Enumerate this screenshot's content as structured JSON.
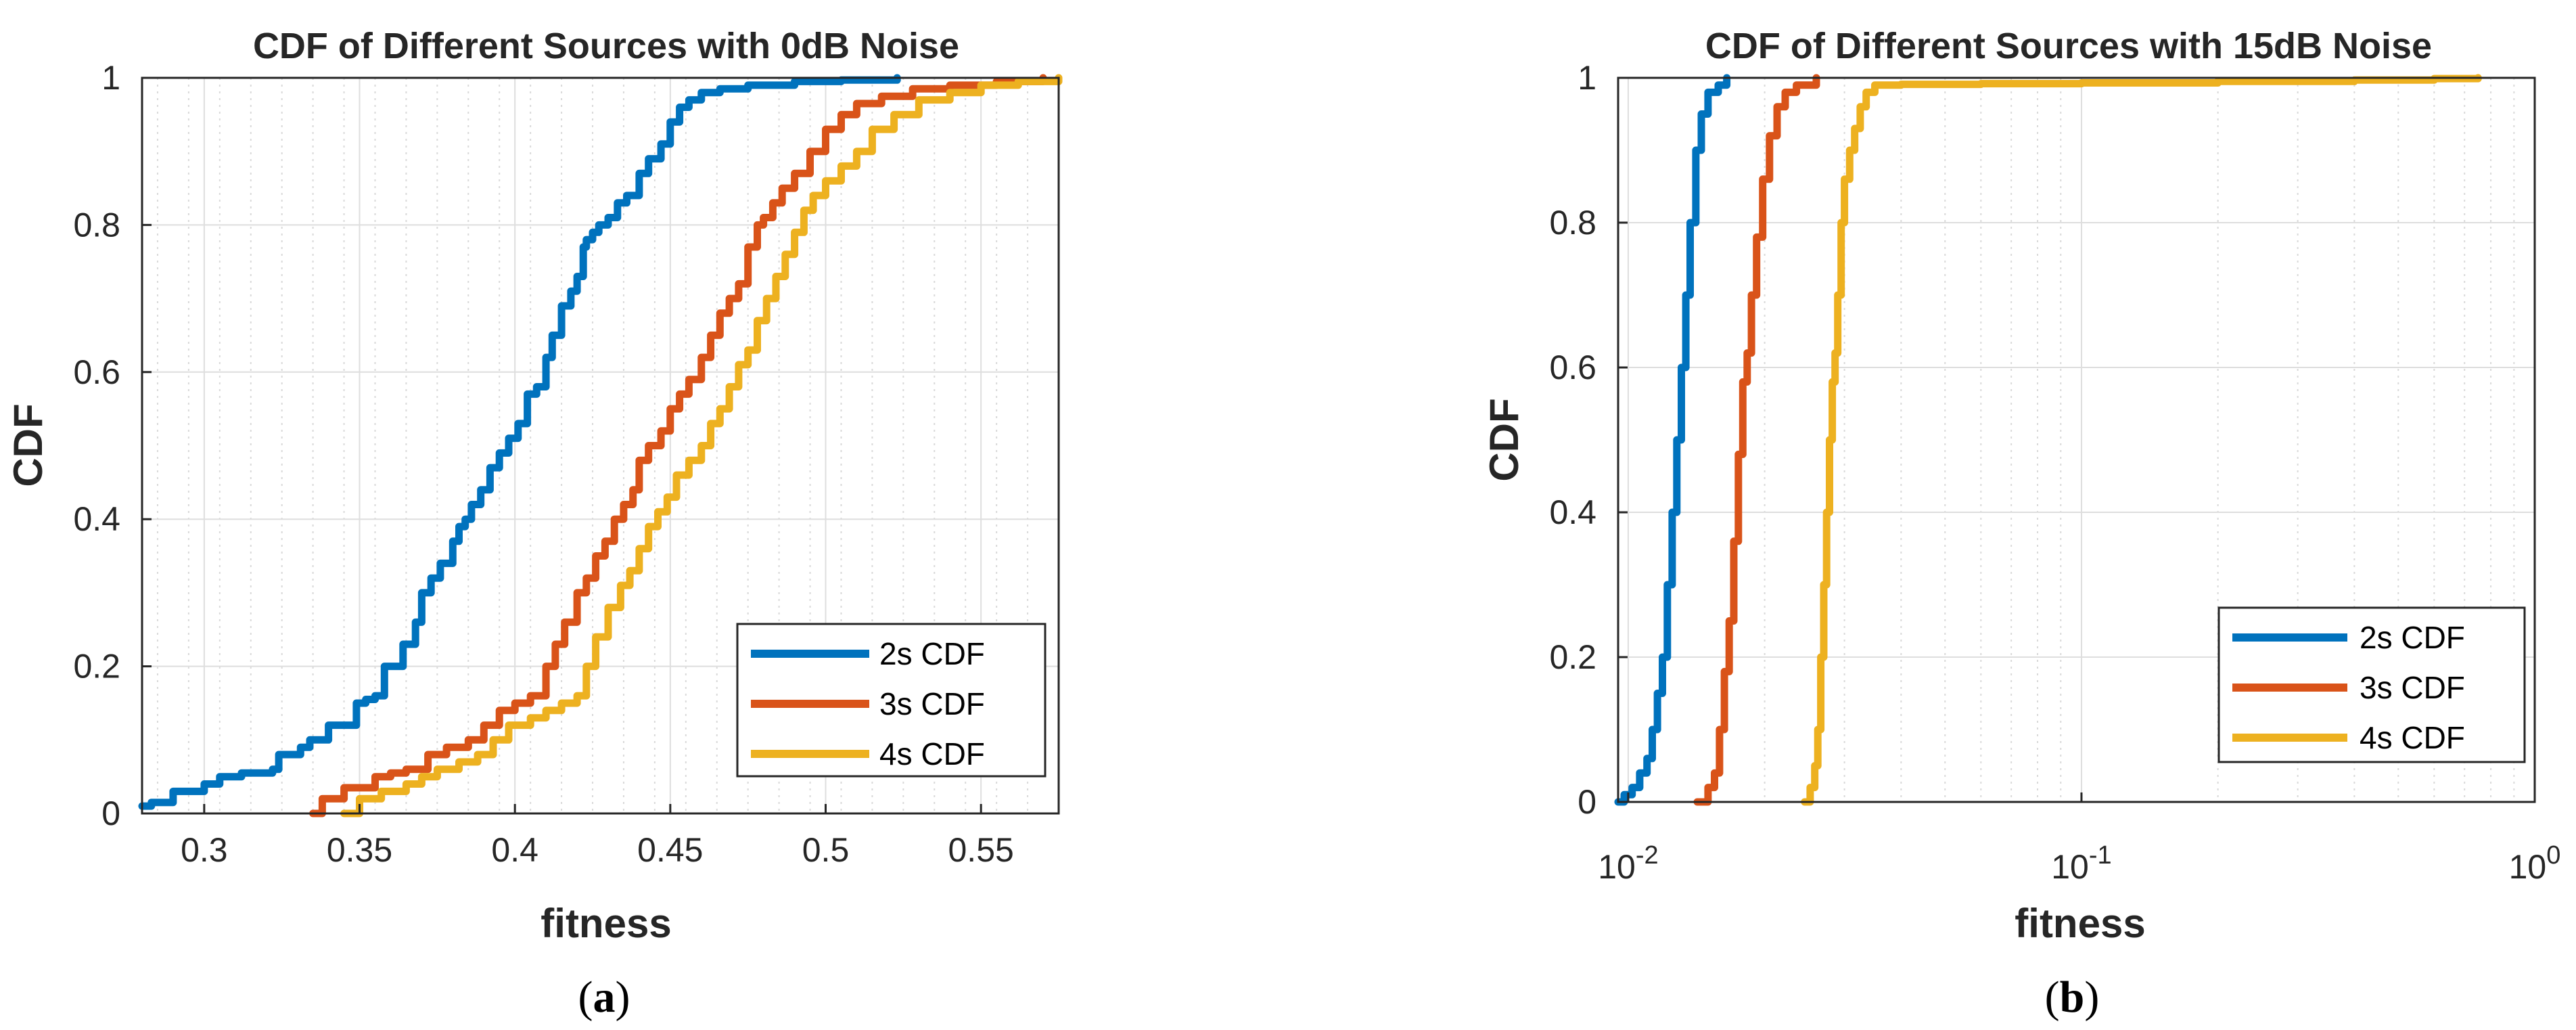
{
  "chart_data": [
    {
      "panel": "a",
      "type": "line",
      "title": "CDF of Different Sources with 0dB Noise",
      "xlabel": "fitness",
      "ylabel": "CDF",
      "xscale": "linear",
      "xlim": [
        0.28,
        0.575
      ],
      "ylim": [
        0,
        1
      ],
      "xticks": [
        0.3,
        0.35,
        0.4,
        0.45,
        0.5,
        0.55
      ],
      "xtick_labels": [
        "0.3",
        "0.35",
        "0.4",
        "0.45",
        "0.5",
        "0.55"
      ],
      "yticks": [
        0,
        0.2,
        0.4,
        0.6,
        0.8,
        1
      ],
      "ytick_labels": [
        "0",
        "0.2",
        "0.4",
        "0.6",
        "0.8",
        "1"
      ],
      "grid": true,
      "legend_position": "bottom-right",
      "series": [
        {
          "name": "2s CDF",
          "color": "#0072BD",
          "x": [
            0.28,
            0.283,
            0.29,
            0.3,
            0.305,
            0.312,
            0.322,
            0.324,
            0.331,
            0.334,
            0.34,
            0.349,
            0.352,
            0.355,
            0.358,
            0.364,
            0.368,
            0.37,
            0.373,
            0.376,
            0.38,
            0.382,
            0.384,
            0.386,
            0.389,
            0.392,
            0.395,
            0.398,
            0.401,
            0.404,
            0.407,
            0.41,
            0.412,
            0.415,
            0.418,
            0.42,
            0.422,
            0.423,
            0.425,
            0.427,
            0.43,
            0.433,
            0.436,
            0.44,
            0.443,
            0.447,
            0.45,
            0.453,
            0.456,
            0.46,
            0.466,
            0.475,
            0.49,
            0.505,
            0.523
          ],
          "y": [
            0.01,
            0.015,
            0.03,
            0.04,
            0.05,
            0.055,
            0.06,
            0.08,
            0.09,
            0.1,
            0.12,
            0.15,
            0.155,
            0.16,
            0.2,
            0.23,
            0.26,
            0.3,
            0.32,
            0.34,
            0.37,
            0.39,
            0.4,
            0.42,
            0.44,
            0.47,
            0.49,
            0.51,
            0.53,
            0.57,
            0.58,
            0.62,
            0.65,
            0.69,
            0.71,
            0.73,
            0.77,
            0.78,
            0.79,
            0.8,
            0.81,
            0.83,
            0.84,
            0.87,
            0.89,
            0.91,
            0.94,
            0.96,
            0.97,
            0.98,
            0.985,
            0.99,
            0.995,
            0.997,
            1.0
          ]
        },
        {
          "name": "3s CDF",
          "color": "#D95319",
          "x": [
            0.335,
            0.338,
            0.345,
            0.355,
            0.36,
            0.365,
            0.372,
            0.378,
            0.385,
            0.39,
            0.395,
            0.4,
            0.405,
            0.41,
            0.413,
            0.416,
            0.42,
            0.423,
            0.426,
            0.429,
            0.432,
            0.435,
            0.438,
            0.44,
            0.443,
            0.447,
            0.45,
            0.453,
            0.456,
            0.46,
            0.463,
            0.466,
            0.469,
            0.472,
            0.475,
            0.478,
            0.48,
            0.483,
            0.486,
            0.49,
            0.495,
            0.5,
            0.505,
            0.51,
            0.518,
            0.528,
            0.54,
            0.555,
            0.57
          ],
          "y": [
            0.0,
            0.02,
            0.035,
            0.05,
            0.055,
            0.06,
            0.08,
            0.09,
            0.1,
            0.12,
            0.14,
            0.15,
            0.16,
            0.2,
            0.23,
            0.26,
            0.3,
            0.32,
            0.35,
            0.37,
            0.4,
            0.42,
            0.44,
            0.48,
            0.5,
            0.52,
            0.55,
            0.57,
            0.59,
            0.62,
            0.65,
            0.68,
            0.7,
            0.72,
            0.77,
            0.8,
            0.81,
            0.83,
            0.85,
            0.87,
            0.9,
            0.93,
            0.95,
            0.965,
            0.975,
            0.985,
            0.99,
            0.995,
            1.0
          ]
        },
        {
          "name": "4s CDF",
          "color": "#EDB120",
          "x": [
            0.345,
            0.35,
            0.357,
            0.365,
            0.37,
            0.375,
            0.382,
            0.388,
            0.393,
            0.398,
            0.405,
            0.41,
            0.415,
            0.42,
            0.423,
            0.426,
            0.43,
            0.434,
            0.437,
            0.44,
            0.443,
            0.446,
            0.449,
            0.452,
            0.456,
            0.46,
            0.463,
            0.466,
            0.469,
            0.472,
            0.475,
            0.478,
            0.481,
            0.484,
            0.487,
            0.49,
            0.493,
            0.496,
            0.5,
            0.505,
            0.51,
            0.515,
            0.522,
            0.53,
            0.54,
            0.55,
            0.562,
            0.575
          ],
          "y": [
            0.0,
            0.02,
            0.03,
            0.04,
            0.05,
            0.06,
            0.07,
            0.08,
            0.1,
            0.12,
            0.13,
            0.14,
            0.15,
            0.16,
            0.2,
            0.24,
            0.28,
            0.31,
            0.33,
            0.36,
            0.39,
            0.41,
            0.43,
            0.46,
            0.48,
            0.5,
            0.53,
            0.55,
            0.58,
            0.61,
            0.63,
            0.67,
            0.7,
            0.73,
            0.76,
            0.79,
            0.82,
            0.84,
            0.86,
            0.88,
            0.9,
            0.93,
            0.95,
            0.97,
            0.98,
            0.99,
            0.995,
            1.0
          ]
        }
      ]
    },
    {
      "panel": "b",
      "type": "line",
      "title": "CDF of Different Sources with 15dB Noise",
      "xlabel": "fitness",
      "ylabel": "CDF",
      "xscale": "log",
      "xlim": [
        0.0095,
        1
      ],
      "ylim": [
        0,
        1
      ],
      "xticks": [
        0.01,
        0.1,
        1
      ],
      "xtick_labels": [
        {
          "base": "10",
          "exp": "-2"
        },
        {
          "base": "10",
          "exp": "-1"
        },
        {
          "base": "10",
          "exp": "0"
        }
      ],
      "yticks": [
        0,
        0.2,
        0.4,
        0.6,
        0.8,
        1
      ],
      "ytick_labels": [
        "0",
        "0.2",
        "0.4",
        "0.6",
        "0.8",
        "1"
      ],
      "grid": true,
      "legend_position": "bottom-right",
      "series": [
        {
          "name": "2s CDF",
          "color": "#0072BD",
          "x": [
            0.0095,
            0.0098,
            0.0102,
            0.0106,
            0.011,
            0.0113,
            0.0116,
            0.0119,
            0.0122,
            0.0125,
            0.0128,
            0.0131,
            0.0134,
            0.0137,
            0.0141,
            0.0145,
            0.015,
            0.0158,
            0.0165
          ],
          "y": [
            0.0,
            0.01,
            0.02,
            0.04,
            0.06,
            0.1,
            0.15,
            0.2,
            0.3,
            0.4,
            0.5,
            0.6,
            0.7,
            0.8,
            0.9,
            0.95,
            0.98,
            0.99,
            1.0
          ]
        },
        {
          "name": "3s CDF",
          "color": "#D95319",
          "x": [
            0.0142,
            0.015,
            0.0155,
            0.0159,
            0.0163,
            0.0167,
            0.0171,
            0.0175,
            0.0179,
            0.0183,
            0.0187,
            0.0192,
            0.0198,
            0.0205,
            0.0213,
            0.0222,
            0.0235,
            0.026
          ],
          "y": [
            0.0,
            0.02,
            0.04,
            0.1,
            0.18,
            0.25,
            0.36,
            0.48,
            0.58,
            0.62,
            0.7,
            0.78,
            0.86,
            0.92,
            0.96,
            0.98,
            0.99,
            1.0
          ]
        },
        {
          "name": "4s CDF",
          "color": "#EDB120",
          "x": [
            0.0245,
            0.0252,
            0.0258,
            0.0262,
            0.0266,
            0.027,
            0.0274,
            0.0278,
            0.0282,
            0.0286,
            0.029,
            0.0295,
            0.03,
            0.0308,
            0.0316,
            0.0325,
            0.0335,
            0.035,
            0.04,
            0.06,
            0.1,
            0.2,
            0.4,
            0.6,
            0.75
          ],
          "y": [
            0.0,
            0.02,
            0.05,
            0.1,
            0.2,
            0.3,
            0.4,
            0.5,
            0.58,
            0.62,
            0.7,
            0.8,
            0.86,
            0.9,
            0.93,
            0.96,
            0.98,
            0.99,
            0.991,
            0.992,
            0.993,
            0.995,
            0.997,
            0.999,
            1.0
          ]
        }
      ]
    }
  ],
  "panel_labels": [
    {
      "open": "(",
      "letter": "a",
      "close": ")"
    },
    {
      "open": "(",
      "letter": "b",
      "close": ")"
    }
  ]
}
